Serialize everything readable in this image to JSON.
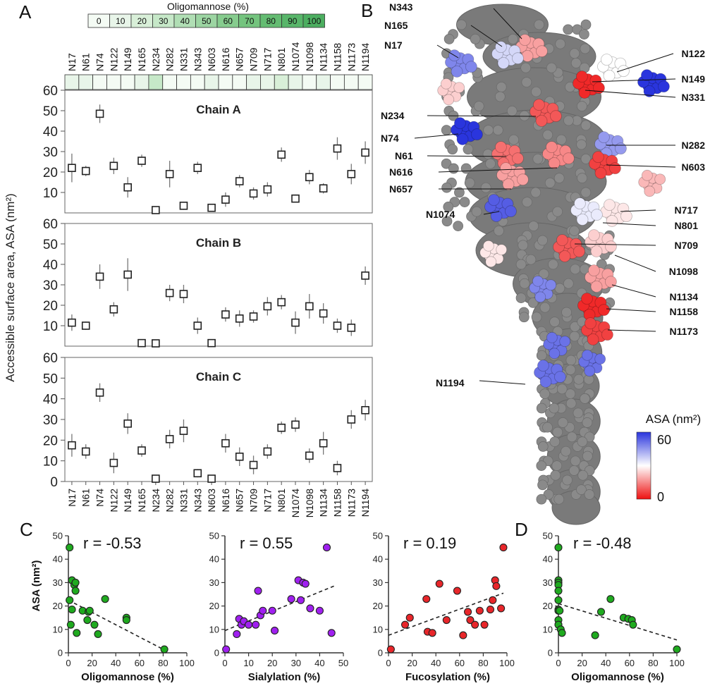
{
  "panels": {
    "A": "A",
    "B": "B",
    "C": "C",
    "D": "D"
  },
  "oligomannose_scale": {
    "title": "Oligomannose (%)",
    "levels": [
      "0",
      "10",
      "20",
      "30",
      "40",
      "50",
      "60",
      "70",
      "80",
      "90",
      "100"
    ]
  },
  "sites": [
    "N17",
    "N61",
    "N74",
    "N122",
    "N149",
    "N165",
    "N234",
    "N282",
    "N331",
    "N343",
    "N603",
    "N616",
    "N657",
    "N709",
    "N717",
    "N801",
    "N1074",
    "N1098",
    "N1134",
    "N1158",
    "N1173",
    "N1194"
  ],
  "site_oligomannose_level": [
    1,
    1,
    0,
    0,
    0,
    1,
    3,
    0,
    0,
    0,
    1,
    0,
    0,
    1,
    1,
    2,
    1,
    0,
    1,
    0,
    0,
    0
  ],
  "colors": {
    "heat_levels": [
      "#f4fbf4",
      "#e8f5e9",
      "#d8efd8",
      "#c6e8c8",
      "#b0deb4",
      "#9cd5a2",
      "#86cc8e",
      "#74c47e",
      "#64bc72",
      "#58b66a",
      "#4cae60"
    ],
    "marker_green": "#1faa1f",
    "marker_purple": "#a020f0",
    "marker_red": "#e8262a",
    "asa_high": "#3440e0",
    "asa_mid": "#ffffff",
    "asa_low": "#ee1111",
    "protein_gray": "#7a7a7a"
  },
  "chart_data": [
    {
      "type": "scatter",
      "panel": "A",
      "title": "Chain A",
      "ylabel": "Accessible surface area, ASA (nm²)",
      "ylim": [
        0,
        60
      ],
      "yticks": [
        60,
        50,
        40,
        30,
        20,
        10
      ],
      "categories": [
        "N17",
        "N61",
        "N74",
        "N122",
        "N149",
        "N165",
        "N234",
        "N282",
        "N331",
        "N343",
        "N603",
        "N616",
        "N657",
        "N709",
        "N717",
        "N801",
        "N1074",
        "N1098",
        "N1134",
        "N1158",
        "N1173",
        "N1194"
      ],
      "values": [
        22,
        20.5,
        48.5,
        23,
        12.5,
        25.5,
        0.5,
        19,
        3.5,
        22,
        2.5,
        6.5,
        15.5,
        9.5,
        11.5,
        28.5,
        7,
        17.5,
        12,
        31.5,
        19,
        29.5
      ],
      "errors": [
        7,
        2.5,
        4.5,
        4,
        5,
        3,
        1,
        6.5,
        2,
        3,
        1.5,
        3.5,
        3,
        3,
        3.5,
        3.5,
        2,
        3.5,
        2.5,
        5.5,
        5,
        5.5
      ]
    },
    {
      "type": "scatter",
      "panel": "A",
      "title": "Chain B",
      "ylim": [
        0,
        60
      ],
      "yticks": [
        60,
        50,
        40,
        30,
        20,
        10
      ],
      "categories": [
        "N17",
        "N61",
        "N74",
        "N122",
        "N149",
        "N165",
        "N234",
        "N282",
        "N331",
        "N343",
        "N603",
        "N616",
        "N657",
        "N709",
        "N717",
        "N801",
        "N1074",
        "N1098",
        "N1134",
        "N1158",
        "N1173",
        "N1194"
      ],
      "values": [
        11.5,
        10,
        34,
        18,
        35,
        1.5,
        1,
        26,
        25.5,
        10,
        1.5,
        15.5,
        13.5,
        14.5,
        19.5,
        21.5,
        11.5,
        19.5,
        16,
        10,
        9,
        34.5
      ],
      "errors": [
        4,
        2,
        6,
        3.5,
        8,
        1.5,
        1,
        4,
        4.5,
        4,
        1.5,
        3.5,
        4,
        3,
        4.5,
        3.5,
        5.5,
        6,
        5,
        3.5,
        4,
        4.5
      ]
    },
    {
      "type": "scatter",
      "panel": "A",
      "title": "Chain C",
      "ylim": [
        0,
        60
      ],
      "yticks": [
        60,
        50,
        40,
        30,
        20,
        10,
        0
      ],
      "categories": [
        "N17",
        "N61",
        "N74",
        "N122",
        "N149",
        "N165",
        "N234",
        "N282",
        "N331",
        "N343",
        "N603",
        "N616",
        "N657",
        "N709",
        "N717",
        "N801",
        "N1074",
        "N1098",
        "N1134",
        "N1158",
        "N1173",
        "N1194"
      ],
      "values": [
        17.5,
        14.5,
        43,
        9,
        28,
        15,
        0.5,
        20.5,
        24.5,
        4,
        1,
        18.5,
        12,
        8,
        14.5,
        26,
        27.5,
        12.5,
        18.5,
        6.5,
        30,
        34.5
      ],
      "errors": [
        5.5,
        3.5,
        4.5,
        5,
        5,
        3,
        1,
        4.5,
        5.5,
        2,
        1,
        4.5,
        4.5,
        4.5,
        3.5,
        3,
        3.5,
        3.5,
        5.5,
        3.5,
        4.5,
        5
      ]
    },
    {
      "type": "scatter",
      "panel": "C",
      "annotation": "r = -0.53",
      "xlabel": "Oligomannose  (%)",
      "ylabel": "ASA (nm²)",
      "xlim": [
        0,
        100
      ],
      "ylim": [
        0,
        50
      ],
      "xticks": [
        0,
        20,
        40,
        60,
        80,
        100
      ],
      "yticks": [
        0,
        10,
        20,
        30,
        40,
        50
      ],
      "color": "marker_green",
      "x": [
        1,
        1,
        2,
        3,
        3,
        5,
        6,
        6,
        7,
        12,
        16,
        17,
        18,
        22,
        25,
        31,
        49,
        49,
        81
      ],
      "y": [
        45,
        22.5,
        12,
        18.5,
        31,
        29,
        30,
        26.5,
        8.5,
        18,
        14,
        17.5,
        18,
        12,
        8,
        23,
        15,
        14,
        1.5
      ],
      "trend": [
        [
          0,
          22.5
        ],
        [
          80,
          1.5
        ]
      ]
    },
    {
      "type": "scatter",
      "panel": "C",
      "annotation": "r = 0.55",
      "xlabel": "Sialylation (%)",
      "xlim": [
        0,
        50
      ],
      "ylim": [
        0,
        50
      ],
      "xticks": [
        0,
        10,
        20,
        30,
        40,
        50
      ],
      "yticks": [
        0,
        10,
        20,
        30,
        40,
        50
      ],
      "color": "marker_purple",
      "x": [
        0.5,
        5,
        6,
        7,
        8,
        10,
        13,
        14,
        15,
        16,
        20,
        21,
        28,
        31,
        32,
        33,
        34,
        36,
        40,
        43,
        45
      ],
      "y": [
        1.5,
        8,
        14.5,
        12,
        13.5,
        12,
        12,
        26.5,
        16,
        18,
        18,
        9.5,
        23,
        31,
        22.5,
        30,
        29.5,
        19,
        18,
        45,
        8.5
      ],
      "trend": [
        [
          0,
          9.5
        ],
        [
          46,
          28.5
        ]
      ]
    },
    {
      "type": "scatter",
      "panel": "C",
      "annotation": "r = 0.19",
      "xlabel": "Fucosylation (%)",
      "xlim": [
        0,
        100
      ],
      "ylim": [
        0,
        50
      ],
      "xticks": [
        0,
        20,
        40,
        60,
        80,
        100
      ],
      "yticks": [
        0,
        10,
        20,
        30,
        40,
        50
      ],
      "color": "marker_red",
      "x": [
        2,
        14,
        18,
        32,
        33,
        37,
        43,
        49,
        58,
        63,
        67,
        69,
        73,
        77,
        81,
        86,
        88,
        90,
        91,
        95,
        97
      ],
      "y": [
        1.5,
        12,
        15,
        23,
        9,
        8.5,
        29.5,
        14,
        26.5,
        7.5,
        17.5,
        14,
        12,
        18,
        12,
        18.5,
        22.5,
        31,
        28.5,
        19,
        45
      ],
      "trend": [
        [
          0,
          7.5
        ],
        [
          97,
          25.5
        ]
      ]
    },
    {
      "type": "scatter",
      "panel": "D",
      "annotation": "r = -0.48",
      "xlabel": "Oligomannose  (%)",
      "xlim": [
        0,
        100
      ],
      "ylim": [
        0,
        50
      ],
      "xticks": [
        0,
        20,
        40,
        60,
        80,
        100
      ],
      "yticks": [
        0,
        10,
        20,
        30,
        40,
        50
      ],
      "color": "marker_green",
      "x": [
        0,
        0,
        0,
        0,
        0,
        0,
        0,
        0,
        0,
        0,
        0,
        1,
        2,
        3,
        31,
        36,
        44,
        55,
        59,
        62,
        63,
        100
      ],
      "y": [
        45,
        31,
        30,
        29,
        26.5,
        22.5,
        18.5,
        18,
        14,
        12,
        12,
        18,
        10,
        8.5,
        7.5,
        17.5,
        23,
        15,
        14.5,
        14,
        12,
        1.5
      ],
      "trend": [
        [
          0,
          21
        ],
        [
          100,
          5.5
        ]
      ]
    }
  ],
  "structure": {
    "colorbar_title": "ASA (nm²)",
    "colorbar_max": "60",
    "colorbar_min": "0",
    "labels": [
      "N343",
      "N165",
      "N17",
      "N122",
      "N149",
      "N331",
      "N234",
      "N74",
      "N61",
      "N282",
      "N616",
      "N603",
      "N657",
      "N717",
      "N1074",
      "N801",
      "N709",
      "N1098",
      "N1134",
      "N1158",
      "N1173",
      "N1194"
    ],
    "glycan_color_values": [
      0.3,
      0.6,
      0.8,
      0.5,
      1.0,
      0.05,
      0.15,
      1.0,
      0.2,
      0.75,
      0.25,
      0.1,
      0.3,
      0.45,
      0.9,
      0.55,
      0.15,
      0.4,
      0.3,
      0.05,
      0.1,
      0.85
    ]
  }
}
